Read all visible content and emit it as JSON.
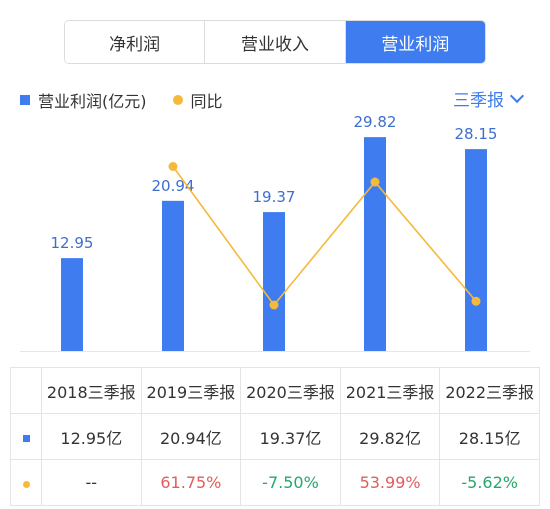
{
  "tabs": [
    {
      "label": "净利润",
      "active": false
    },
    {
      "label": "营业收入",
      "active": false
    },
    {
      "label": "营业利润",
      "active": true
    }
  ],
  "legend": {
    "bar_label": "营业利润(亿元)",
    "line_label": "同比"
  },
  "period_selector": "三季报",
  "colors": {
    "accent": "#3e7cf0",
    "line": "#f5b93b",
    "positive": "#e25c5c",
    "negative": "#27a86b"
  },
  "chart_data": {
    "type": "bar",
    "categories": [
      "2018三季报",
      "2019三季报",
      "2020三季报",
      "2021三季报",
      "2022三季报"
    ],
    "series": [
      {
        "name": "营业利润(亿元)",
        "type": "bar",
        "values": [
          12.95,
          20.94,
          19.37,
          29.82,
          28.15
        ]
      },
      {
        "name": "同比",
        "type": "line",
        "values": [
          null,
          61.75,
          -7.5,
          53.99,
          -5.62
        ]
      }
    ],
    "data_labels": [
      "12.95",
      "20.94",
      "19.37",
      "29.82",
      "28.15"
    ],
    "ylim": [
      0,
      35
    ]
  },
  "table": {
    "headers": [
      "2018三季报",
      "2019三季报",
      "2020三季报",
      "2021三季报",
      "2022三季报"
    ],
    "values_row": [
      "12.95亿",
      "20.94亿",
      "19.37亿",
      "29.82亿",
      "28.15亿"
    ],
    "yoy_row": [
      "--",
      "61.75%",
      "-7.50%",
      "53.99%",
      "-5.62%"
    ]
  }
}
